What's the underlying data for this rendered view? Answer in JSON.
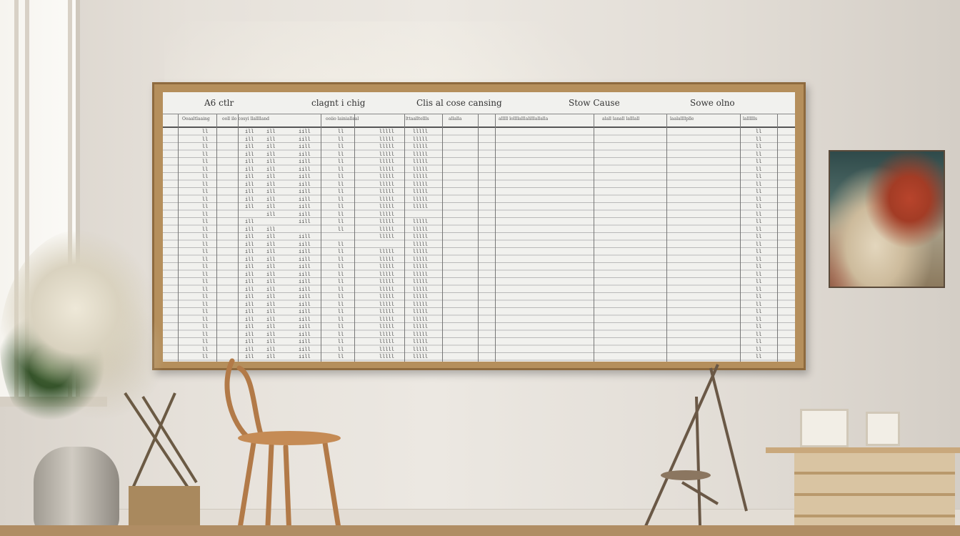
{
  "board": {
    "headers": [
      "A6 ctlr",
      "clagnt i chig",
      "Clis al cose cansing",
      "Stow Cause",
      "Sowe olno"
    ],
    "subheaders": [
      "Ooaaltlaaing",
      "ooll ilo cosyi llalllland",
      "ooiio lainiallaal",
      "lttaalltellls",
      "allalla",
      "alllll lollllalllalilllallalla",
      "alall   lanall  lalllall",
      "laalallllplle",
      "lalllllls"
    ]
  },
  "scene": {
    "wall_color": "#e6e1da",
    "board_frame_color": "#b58f5c"
  }
}
